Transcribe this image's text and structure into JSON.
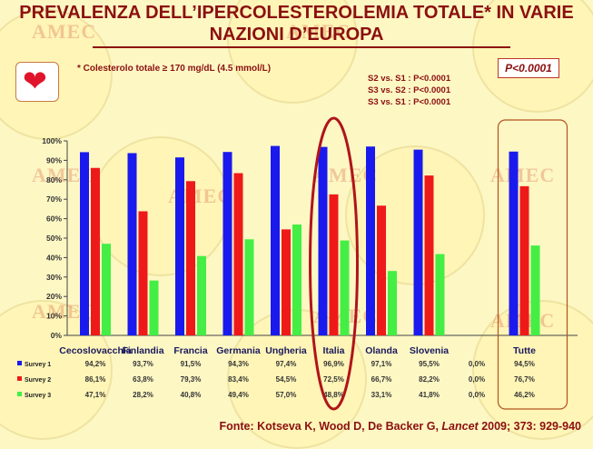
{
  "title": "PREVALENZA DELL’IPERCOLESTEROLEMIA TOTALE* IN VARIE NAZIONI D’EUROPA",
  "note": "* Colesterolo totale ≥  170 mg/dL (4.5 mmol/L)",
  "stats": [
    "S2 vs. S1 : P<0.0001",
    "S3 vs. S2 : P<0.0001",
    "S3 vs. S1 : P<0.0001"
  ],
  "p_box": "P<0.0001",
  "source_prefix": "Fonte: Kotseva K, Wood D, De Backer G, ",
  "source_journal": "Lancet",
  "source_suffix": " 2009; 373: 929-940",
  "watermark": "AMEC",
  "icons": {
    "heart": "heart-icon"
  },
  "colors": {
    "survey1": "#1a1aee",
    "survey2": "#ee1a1a",
    "survey3": "#44ee44",
    "text": "#8b1010"
  },
  "chart_data": {
    "type": "bar",
    "categories": [
      "Cecoslovacchia",
      "Finlandia",
      "Francia",
      "Germania",
      "Ungheria",
      "Italia",
      "Olanda",
      "Slovenia",
      "",
      "Tutte"
    ],
    "ylim": [
      0,
      100
    ],
    "yticks": [
      "0%",
      "10%",
      "20%",
      "30%",
      "40%",
      "50%",
      "60%",
      "70%",
      "80%",
      "90%",
      "100%"
    ],
    "highlighted": [
      "Italia",
      "Tutte"
    ],
    "series": [
      {
        "name": "Survey 1",
        "values": [
          94.2,
          93.7,
          91.5,
          94.3,
          97.4,
          96.9,
          97.1,
          95.5,
          0.0,
          94.5
        ],
        "labels": [
          "94,2%",
          "93,7%",
          "91,5%",
          "94,3%",
          "97,4%",
          "96,9%",
          "97,1%",
          "95,5%",
          "0,0%",
          "94,5%"
        ]
      },
      {
        "name": "Survey 2",
        "values": [
          86.1,
          63.8,
          79.3,
          83.4,
          54.5,
          72.5,
          66.7,
          82.2,
          0.0,
          76.7
        ],
        "labels": [
          "86,1%",
          "63,8%",
          "79,3%",
          "83,4%",
          "54,5%",
          "72,5%",
          "66,7%",
          "82,2%",
          "0,0%",
          "76,7%"
        ]
      },
      {
        "name": "Survey 3",
        "values": [
          47.1,
          28.2,
          40.8,
          49.4,
          57.0,
          48.8,
          33.1,
          41.8,
          0.0,
          46.2
        ],
        "labels": [
          "47,1%",
          "28,2%",
          "40,8%",
          "49,4%",
          "57,0%",
          "48,8%",
          "33,1%",
          "41,8%",
          "0,0%",
          "46,2%"
        ]
      }
    ]
  }
}
